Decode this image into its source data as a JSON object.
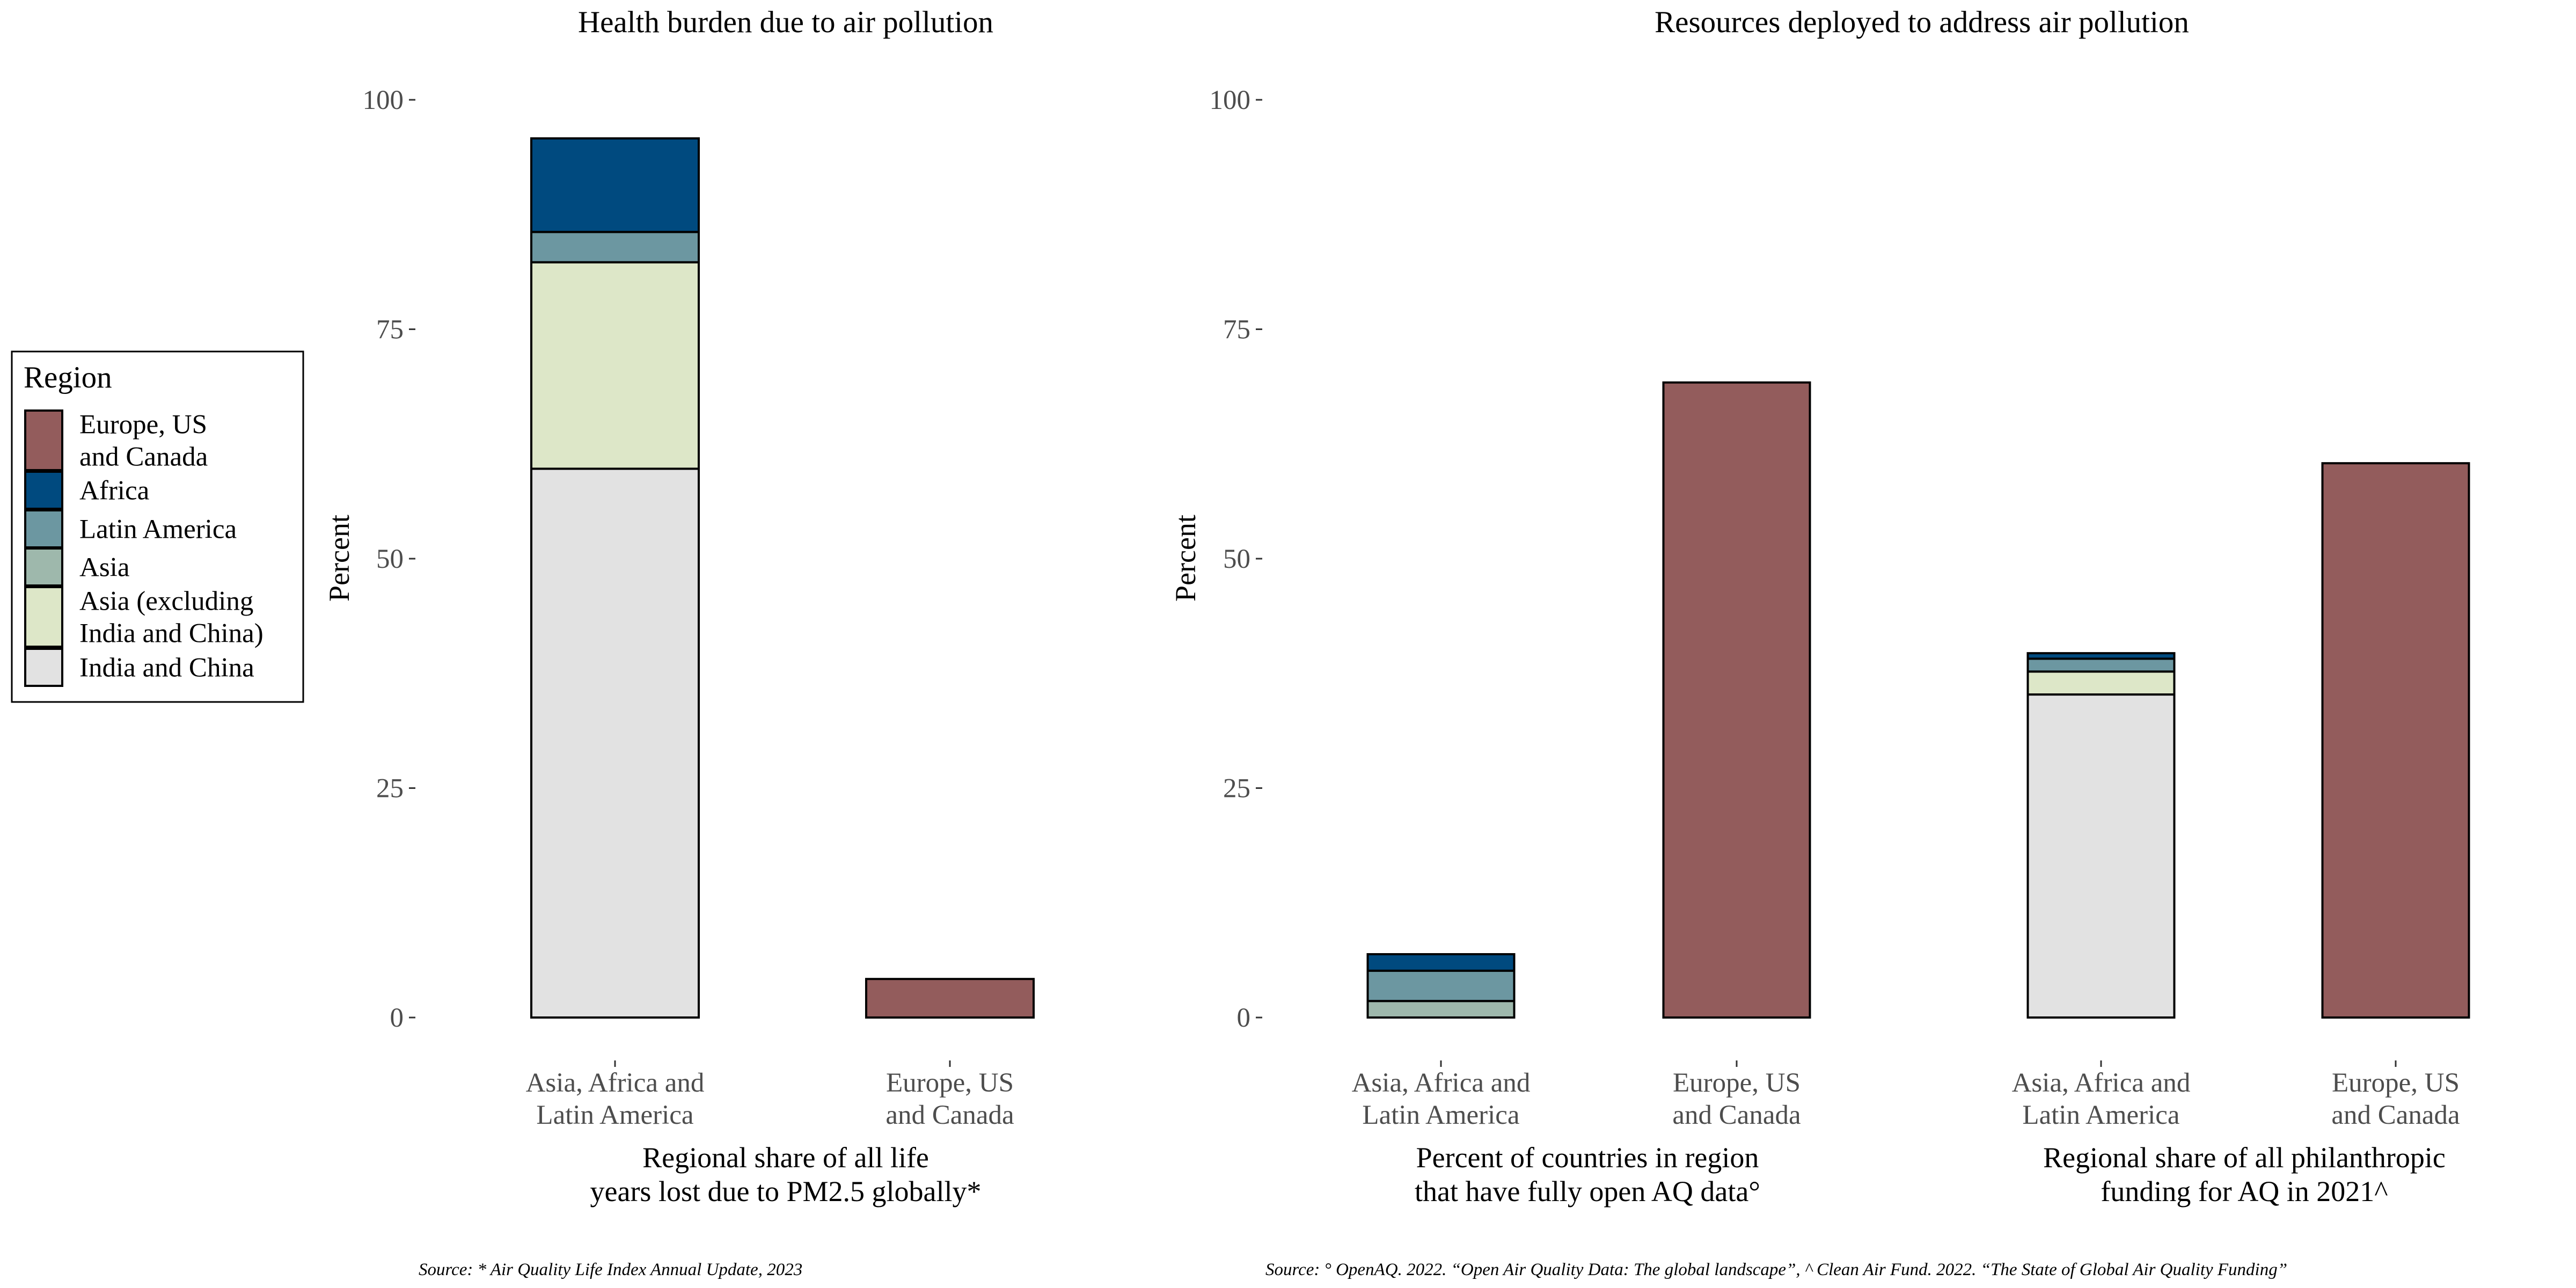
{
  "colors": {
    "Europe, US and Canada": "#935c5c",
    "Africa": "#004a7f",
    "Latin America": "#6c97a1",
    "Asia": "#9eb8ac",
    "Asia (excluding India and China)": "#dde7c8",
    "India and China": "#e2e2e2"
  },
  "legend": {
    "title": "Region",
    "items": [
      {
        "key": "Europe, US and Canada",
        "lines": [
          "Europe, US",
          "and Canada"
        ]
      },
      {
        "key": "Africa",
        "lines": [
          "Africa"
        ]
      },
      {
        "key": "Latin America",
        "lines": [
          "Latin America"
        ]
      },
      {
        "key": "Asia",
        "lines": [
          "Asia"
        ]
      },
      {
        "key": "Asia (excluding India and China)",
        "lines": [
          "Asia (excluding",
          "India and China)"
        ]
      },
      {
        "key": "India and China",
        "lines": [
          "India and China"
        ]
      }
    ]
  },
  "chart_data": [
    {
      "type": "bar",
      "stacked": true,
      "title": "Health burden due to air pollution",
      "ylabel": "Percent",
      "ylim": [
        0,
        100
      ],
      "yticks": [
        0,
        25,
        50,
        75,
        100
      ],
      "groups": [
        {
          "label": [
            "Regional share of all life",
            "years lost due to PM2.5 globally*"
          ],
          "categories": [
            [
              "Asia, Africa and",
              "Latin America"
            ],
            [
              "Europe, US",
              "and Canada"
            ]
          ],
          "series": [
            {
              "name": "India and China",
              "values": [
                59.8,
                0
              ]
            },
            {
              "name": "Asia (excluding India and China)",
              "values": [
                22.5,
                0
              ]
            },
            {
              "name": "Latin America",
              "values": [
                3.3,
                0
              ]
            },
            {
              "name": "Africa",
              "values": [
                10.2,
                0
              ]
            },
            {
              "name": "Europe, US and Canada",
              "values": [
                0,
                4.2
              ]
            }
          ]
        }
      ],
      "source": "Source: * Air Quality Life Index Annual Update, 2023"
    },
    {
      "type": "bar",
      "stacked": true,
      "title": "Resources deployed to address air pollution",
      "ylabel": "Percent",
      "ylim": [
        0,
        100
      ],
      "yticks": [
        0,
        25,
        50,
        75,
        100
      ],
      "groups": [
        {
          "label": [
            "Percent of countries in region",
            "that have fully open AQ data°"
          ],
          "categories": [
            [
              "Asia, Africa and",
              "Latin America"
            ],
            [
              "Europe, US",
              "and Canada"
            ]
          ],
          "series": [
            {
              "name": "Asia",
              "values": [
                1.8,
                0
              ]
            },
            {
              "name": "Latin America",
              "values": [
                3.3,
                0
              ]
            },
            {
              "name": "Africa",
              "values": [
                1.8,
                0
              ]
            },
            {
              "name": "Europe, US and Canada",
              "values": [
                0,
                69.2
              ]
            }
          ]
        },
        {
          "label": [
            "Regional share of all philanthropic",
            "funding for AQ in 2021^"
          ],
          "categories": [
            [
              "Asia, Africa and",
              "Latin America"
            ],
            [
              "Europe, US",
              "and Canada"
            ]
          ],
          "series": [
            {
              "name": "India and China",
              "values": [
                35.2,
                0
              ]
            },
            {
              "name": "Asia (excluding India and China)",
              "values": [
                2.5,
                0
              ]
            },
            {
              "name": "Latin America",
              "values": [
                1.4,
                0
              ]
            },
            {
              "name": "Africa",
              "values": [
                0.6,
                0
              ]
            },
            {
              "name": "Europe, US and Canada",
              "values": [
                0,
                60.4
              ]
            }
          ]
        }
      ],
      "source": "Source: ° OpenAQ. 2022. “Open Air Quality Data: The global landscape”, ^ Clean Air Fund. 2022. “The State of Global Air Quality Funding”"
    }
  ]
}
